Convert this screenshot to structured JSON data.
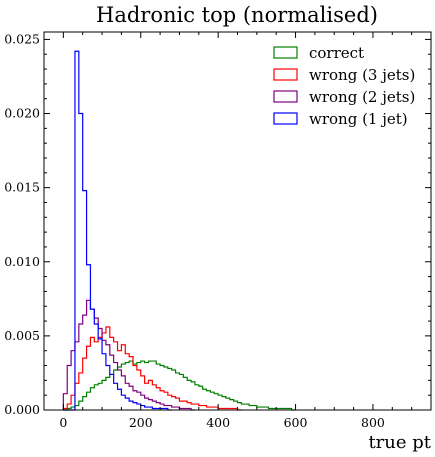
{
  "chart_data": {
    "type": "line",
    "title": "Hadronic top (normalised)",
    "xlabel": "true pt",
    "ylabel": "",
    "xlim": [
      -50,
      950
    ],
    "ylim": [
      0,
      0.0255
    ],
    "xticks": [
      0,
      200,
      400,
      600,
      800
    ],
    "xtick_labels": [
      "0",
      "200",
      "400",
      "600",
      "800"
    ],
    "yticks": [
      0.0,
      0.005,
      0.01,
      0.015,
      0.02,
      0.025
    ],
    "ytick_labels": [
      "0.000",
      "0.005",
      "0.010",
      "0.015",
      "0.020",
      "0.025"
    ],
    "bin_width": 10,
    "grid": false,
    "legend_position": "top-right",
    "series": [
      {
        "name": "correct",
        "color": "#008000",
        "x_start": 0,
        "values": [
          0.0,
          0.0001,
          0.0002,
          0.0003,
          0.0006,
          0.0009,
          0.0012,
          0.0015,
          0.0017,
          0.0018,
          0.002,
          0.0022,
          0.0024,
          0.0027,
          0.0029,
          0.0031,
          0.0032,
          0.0033,
          0.0031,
          0.0032,
          0.0033,
          0.0032,
          0.0033,
          0.0033,
          0.0031,
          0.003,
          0.0029,
          0.0028,
          0.0027,
          0.0025,
          0.0024,
          0.0022,
          0.002,
          0.0019,
          0.0017,
          0.0016,
          0.0014,
          0.0013,
          0.0012,
          0.0011,
          0.001,
          0.0009,
          0.0008,
          0.0007,
          0.0006,
          0.0005,
          0.0004,
          0.0004,
          0.0003,
          0.0003,
          0.0002,
          0.0002,
          0.0002,
          0.0001,
          0.0001,
          0.0001,
          0.0001,
          0.0001,
          0.0001,
          0.0
        ]
      },
      {
        "name": "wrong (3 jets)",
        "color": "#ff0000",
        "x_start": 0,
        "values": [
          0.0001,
          0.0004,
          0.001,
          0.0018,
          0.0025,
          0.0035,
          0.0043,
          0.0049,
          0.0046,
          0.0049,
          0.0052,
          0.0056,
          0.0049,
          0.0046,
          0.004,
          0.0044,
          0.0038,
          0.0036,
          0.003,
          0.0027,
          0.0023,
          0.0018,
          0.002,
          0.0017,
          0.0015,
          0.0013,
          0.0012,
          0.001,
          0.0009,
          0.0008,
          0.0006,
          0.0006,
          0.0005,
          0.0004,
          0.0004,
          0.0003,
          0.0003,
          0.0002,
          0.0002,
          0.0002,
          0.0001,
          0.0001,
          0.0001,
          0.0001,
          0.0001,
          0.0
        ]
      },
      {
        "name": "wrong (2 jets)",
        "color": "#800080",
        "x_start": 0,
        "values": [
          0.0011,
          0.003,
          0.004,
          0.0046,
          0.0058,
          0.0064,
          0.0074,
          0.0068,
          0.0062,
          0.0055,
          0.0047,
          0.0044,
          0.0037,
          0.0032,
          0.0027,
          0.0023,
          0.0018,
          0.0016,
          0.0013,
          0.0012,
          0.001,
          0.0008,
          0.0007,
          0.0006,
          0.0005,
          0.0004,
          0.0003,
          0.0003,
          0.0002,
          0.0002,
          0.0001,
          0.0001,
          0.0001,
          0.0
        ]
      },
      {
        "name": "wrong (1 jet)",
        "color": "#0000ff",
        "x_start": 0,
        "values": [
          0.0,
          0.0,
          0.0,
          0.0242,
          0.02,
          0.0148,
          0.0098,
          0.0068,
          0.0058,
          0.0048,
          0.0038,
          0.003,
          0.0024,
          0.0018,
          0.0014,
          0.001,
          0.0008,
          0.0006,
          0.0005,
          0.0004,
          0.0003,
          0.0002,
          0.0002,
          0.0001,
          0.0001,
          0.0001,
          0.0001,
          0.0
        ]
      }
    ]
  }
}
